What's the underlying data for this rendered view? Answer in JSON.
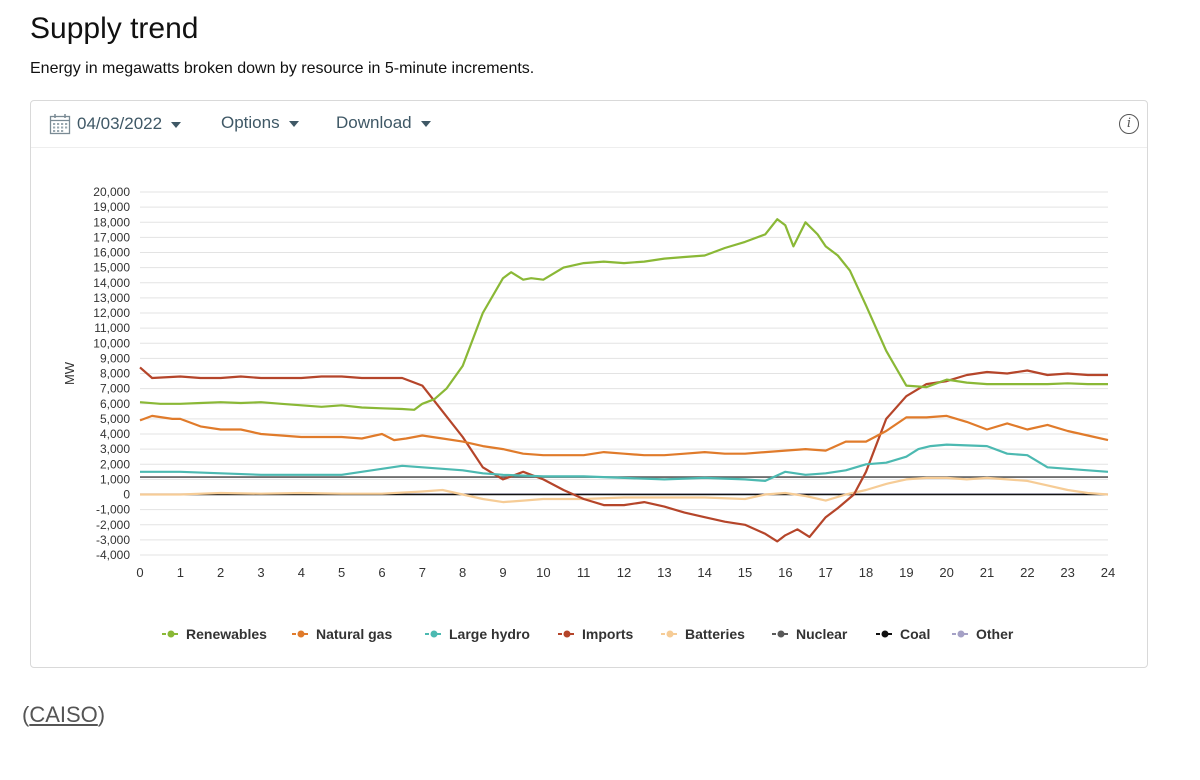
{
  "header": {
    "title": "Supply trend",
    "subtitle": "Energy in megawatts broken down by resource in 5-minute increments."
  },
  "toolbar": {
    "date_label": "04/03/2022",
    "options_label": "Options",
    "download_label": "Download",
    "info_glyph": "i",
    "icons": [
      "calendar-icon",
      "chevron-down-icon",
      "info-icon"
    ]
  },
  "source": {
    "open_paren": "(",
    "link_label": "CAISO",
    "close_paren": ")"
  },
  "chart_data": {
    "type": "line",
    "title": "",
    "xlabel": "",
    "ylabel": "MW",
    "xlim": [
      0,
      24
    ],
    "ylim": [
      -4000,
      20000
    ],
    "x_ticks": [
      0,
      1,
      2,
      3,
      4,
      5,
      6,
      7,
      8,
      9,
      10,
      11,
      12,
      13,
      14,
      15,
      16,
      17,
      18,
      19,
      20,
      21,
      22,
      23,
      24
    ],
    "y_ticks": [
      20000,
      19000,
      18000,
      17000,
      16000,
      15000,
      14000,
      13000,
      12000,
      11000,
      10000,
      9000,
      8000,
      7000,
      6000,
      5000,
      4000,
      3000,
      2000,
      1000,
      0,
      -1000,
      -2000,
      -3000,
      -4000
    ],
    "y_tick_labels": [
      "20,000",
      "19,000",
      "18,000",
      "17,000",
      "16,000",
      "15,000",
      "14,000",
      "13,000",
      "12,000",
      "11,000",
      "10,000",
      "9,000",
      "8,000",
      "7,000",
      "6,000",
      "5,000",
      "4,000",
      "3,000",
      "2,000",
      "1,000",
      "0",
      "-1,000",
      "-2,000",
      "-3,000",
      "-4,000"
    ],
    "grid": true,
    "legend_position": "bottom",
    "series": [
      {
        "name": "Renewables",
        "color": "#8ab836",
        "x": [
          0,
          0.5,
          1,
          1.5,
          2,
          2.5,
          3,
          3.5,
          4,
          4.5,
          5,
          5.5,
          6,
          6.5,
          6.8,
          7,
          7.3,
          7.6,
          8,
          8.5,
          9,
          9.2,
          9.5,
          9.7,
          10,
          10.5,
          11,
          11.5,
          12,
          12.5,
          13,
          13.5,
          14,
          14.5,
          15,
          15.5,
          15.8,
          16,
          16.2,
          16.5,
          16.8,
          17,
          17.3,
          17.6,
          18,
          18.5,
          19,
          19.5,
          20,
          20.5,
          21,
          21.5,
          22,
          22.5,
          23,
          23.5,
          24
        ],
        "values": [
          6100,
          6000,
          6000,
          6050,
          6100,
          6050,
          6100,
          6000,
          5900,
          5800,
          5900,
          5750,
          5700,
          5650,
          5600,
          6000,
          6300,
          7000,
          8500,
          12000,
          14300,
          14700,
          14200,
          14300,
          14200,
          15000,
          15300,
          15400,
          15300,
          15400,
          15600,
          15700,
          15800,
          16300,
          16700,
          17200,
          18200,
          17800,
          16400,
          18000,
          17200,
          16400,
          15800,
          14800,
          12500,
          9500,
          7200,
          7100,
          7600,
          7400,
          7300,
          7300,
          7300,
          7300,
          7350,
          7300,
          7300
        ]
      },
      {
        "name": "Natural gas",
        "color": "#e07b2b",
        "x": [
          0,
          0.3,
          0.8,
          1,
          1.5,
          2,
          2.5,
          3,
          3.5,
          4,
          4.5,
          5,
          5.5,
          6,
          6.3,
          6.6,
          7,
          7.5,
          8,
          8.5,
          9,
          9.5,
          10,
          10.5,
          11,
          11.5,
          12,
          12.5,
          13,
          13.5,
          14,
          14.5,
          15,
          15.5,
          16,
          16.5,
          17,
          17.5,
          18,
          18.5,
          19,
          19.5,
          20,
          20.5,
          21,
          21.5,
          22,
          22.5,
          23,
          23.5,
          24
        ],
        "values": [
          4900,
          5200,
          5000,
          5000,
          4500,
          4300,
          4300,
          4000,
          3900,
          3800,
          3800,
          3800,
          3700,
          4000,
          3600,
          3700,
          3900,
          3700,
          3500,
          3200,
          3000,
          2700,
          2600,
          2600,
          2600,
          2800,
          2700,
          2600,
          2600,
          2700,
          2800,
          2700,
          2700,
          2800,
          2900,
          3000,
          2900,
          3500,
          3500,
          4200,
          5100,
          5100,
          5200,
          4800,
          4300,
          4700,
          4300,
          4600,
          4200,
          3900,
          3600
        ]
      },
      {
        "name": "Large hydro",
        "color": "#4cb9b1",
        "x": [
          0,
          1,
          2,
          3,
          4,
          5,
          6,
          6.5,
          7,
          7.5,
          8,
          8.5,
          9,
          10,
          11,
          12,
          13,
          14,
          15,
          15.5,
          16,
          16.5,
          17,
          17.5,
          18,
          18.5,
          19,
          19.3,
          19.6,
          20,
          21,
          21.5,
          22,
          22.5,
          23,
          24
        ],
        "values": [
          1500,
          1500,
          1400,
          1300,
          1300,
          1300,
          1700,
          1900,
          1800,
          1700,
          1600,
          1400,
          1300,
          1200,
          1200,
          1100,
          1000,
          1100,
          1000,
          900,
          1500,
          1300,
          1400,
          1600,
          2000,
          2100,
          2500,
          3000,
          3200,
          3300,
          3200,
          2700,
          2600,
          1800,
          1700,
          1500
        ]
      },
      {
        "name": "Imports",
        "color": "#b5452a",
        "x": [
          0,
          0.3,
          1,
          1.5,
          2,
          2.5,
          3,
          3.5,
          4,
          4.5,
          5,
          5.5,
          6,
          6.5,
          7,
          7.5,
          8,
          8.5,
          9,
          9.5,
          10,
          10.5,
          11,
          11.5,
          12,
          12.5,
          13,
          13.5,
          14,
          14.5,
          15,
          15.5,
          15.8,
          16,
          16.3,
          16.6,
          17,
          17.3,
          17.7,
          18,
          18.5,
          19,
          19.5,
          20,
          20.5,
          21,
          21.5,
          22,
          22.5,
          23,
          23.5,
          24
        ],
        "values": [
          8400,
          7700,
          7800,
          7700,
          7700,
          7800,
          7700,
          7700,
          7700,
          7800,
          7800,
          7700,
          7700,
          7700,
          7200,
          5500,
          3800,
          1800,
          1000,
          1500,
          1000,
          300,
          -300,
          -700,
          -700,
          -500,
          -800,
          -1200,
          -1500,
          -1800,
          -2000,
          -2600,
          -3100,
          -2700,
          -2300,
          -2800,
          -1500,
          -900,
          0,
          1500,
          5000,
          6500,
          7300,
          7500,
          7900,
          8100,
          8000,
          8200,
          7900,
          8000,
          7900,
          7900
        ]
      },
      {
        "name": "Batteries",
        "color": "#f6cc96",
        "x": [
          0,
          1,
          2,
          3,
          4,
          5,
          6,
          7,
          7.5,
          8,
          8.5,
          9,
          9.5,
          10,
          11,
          12,
          13,
          14,
          15,
          15.5,
          16,
          16.5,
          17,
          17.5,
          18,
          18.5,
          19,
          19.5,
          20,
          20.5,
          21,
          21.5,
          22,
          22.5,
          23,
          23.5,
          24
        ],
        "values": [
          0,
          0,
          100,
          50,
          100,
          50,
          50,
          200,
          300,
          0,
          -300,
          -500,
          -400,
          -300,
          -300,
          -200,
          -200,
          -200,
          -300,
          0,
          100,
          -100,
          -400,
          0,
          300,
          700,
          1000,
          1100,
          1100,
          1000,
          1100,
          1000,
          900,
          600,
          300,
          100,
          0
        ]
      },
      {
        "name": "Nuclear",
        "color": "#595959",
        "x": [
          0,
          24
        ],
        "values": [
          1150,
          1150
        ]
      },
      {
        "name": "Coal",
        "color": "#111111",
        "x": [
          0,
          24
        ],
        "values": [
          0,
          0
        ]
      },
      {
        "name": "Other",
        "color": "#a5a1c6",
        "x": [
          0,
          24
        ],
        "values": [
          20,
          20
        ]
      }
    ]
  }
}
